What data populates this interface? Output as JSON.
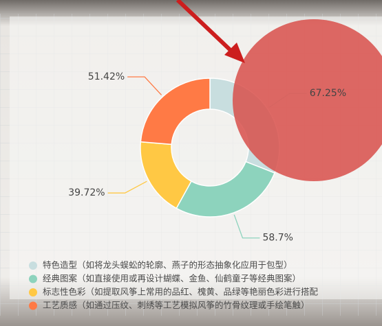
{
  "chart_data": {
    "type": "pie",
    "donut": true,
    "categories": [
      "特色造型（如将龙头蜈蚣的轮廓、燕子的形态抽象化应用于包型）",
      "经典图案（如直接使用或再设计蝴蝶、金鱼、仙鹤童子等经典图案）",
      "标志性色彩（如提取风筝上常用的品红、槐黄、品绿等艳丽色彩进行搭配",
      "工艺质感（如通过压纹、刺绣等工艺模拟风筝的竹骨纹理或手绘笔触）"
    ],
    "values": [
      67.25,
      58.7,
      39.72,
      51.42
    ],
    "value_labels": [
      "67.25%",
      "58.7%",
      "39.72%",
      "51.42%"
    ],
    "colors": [
      "#c8dedf",
      "#8dd3bd",
      "#ffc844",
      "#ff7a45"
    ],
    "legend": "bottom-left"
  }
}
